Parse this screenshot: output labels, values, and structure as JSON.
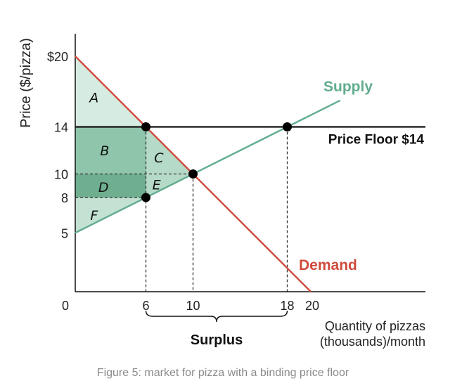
{
  "chart_data": {
    "type": "line",
    "caption": "Figure 5: market for pizza with a binding price floor",
    "ylabel": "Price ($/pizza)",
    "xlabel_lines": [
      "Quantity of pizzas",
      "(thousands)/month"
    ],
    "xlim": [
      0,
      30
    ],
    "ylim": [
      0,
      20
    ],
    "origin_label": "0",
    "x_ticks": [
      {
        "value": 6,
        "label": "6"
      },
      {
        "value": 10,
        "label": "10"
      },
      {
        "value": 18,
        "label": "18"
      },
      {
        "value": 20,
        "label": "20"
      }
    ],
    "y_ticks": [
      {
        "value": 20,
        "label": "$20"
      },
      {
        "value": 14,
        "label": "14"
      },
      {
        "value": 10,
        "label": "10"
      },
      {
        "value": 8,
        "label": "8"
      },
      {
        "value": 5,
        "label": "5"
      }
    ],
    "series": [
      {
        "name": "Supply",
        "color": "#62ad8f",
        "points": [
          [
            0,
            5
          ],
          [
            22.5,
            16.25
          ]
        ]
      },
      {
        "name": "Demand",
        "color": "#cf4a3c",
        "points": [
          [
            0,
            20
          ],
          [
            20,
            0
          ]
        ]
      }
    ],
    "price_floor": {
      "value": 14,
      "label": "Price Floor $14",
      "color": "#111111"
    },
    "points": [
      {
        "x": 6,
        "y": 14
      },
      {
        "x": 18,
        "y": 14
      },
      {
        "x": 10,
        "y": 10
      },
      {
        "x": 6,
        "y": 8
      }
    ],
    "guides": [
      {
        "x1": 6,
        "y1": 14,
        "x2": 6,
        "y2": 0
      },
      {
        "x1": 10,
        "y1": 10,
        "x2": 10,
        "y2": 0
      },
      {
        "x1": 18,
        "y1": 14,
        "x2": 18,
        "y2": 0
      },
      {
        "x1": 0,
        "y1": 10,
        "x2": 10,
        "y2": 10
      },
      {
        "x1": 0,
        "y1": 8,
        "x2": 6,
        "y2": 8
      }
    ],
    "regions": [
      {
        "label": "A",
        "color": "#d6ebe1",
        "polygon": [
          [
            0,
            20
          ],
          [
            0,
            14
          ],
          [
            6,
            14
          ]
        ],
        "label_at": [
          1.6,
          16.5
        ]
      },
      {
        "label": "B",
        "color": "#8fc6ab",
        "polygon": [
          [
            0,
            14
          ],
          [
            6,
            14
          ],
          [
            6,
            10
          ],
          [
            0,
            10
          ]
        ],
        "label_at": [
          2.5,
          12.0
        ]
      },
      {
        "label": "C",
        "color": "#b5dac8",
        "polygon": [
          [
            6,
            14
          ],
          [
            10,
            10
          ],
          [
            6,
            10
          ]
        ],
        "label_at": [
          7.1,
          11.4
        ]
      },
      {
        "label": "D",
        "color": "#6fae8f",
        "polygon": [
          [
            0,
            10
          ],
          [
            6,
            10
          ],
          [
            6,
            8
          ],
          [
            0,
            8
          ]
        ],
        "label_at": [
          2.4,
          8.9
        ]
      },
      {
        "label": "E",
        "color": "#b5dac8",
        "polygon": [
          [
            6,
            10
          ],
          [
            10,
            10
          ],
          [
            6,
            8
          ]
        ],
        "label_at": [
          6.9,
          9.1
        ]
      },
      {
        "label": "F",
        "color": "#c4e2d3",
        "polygon": [
          [
            0,
            8
          ],
          [
            6,
            8
          ],
          [
            0,
            5
          ]
        ],
        "label_at": [
          1.6,
          6.5
        ]
      }
    ],
    "surplus": {
      "label": "Surplus",
      "from": 6,
      "to": 18
    }
  }
}
